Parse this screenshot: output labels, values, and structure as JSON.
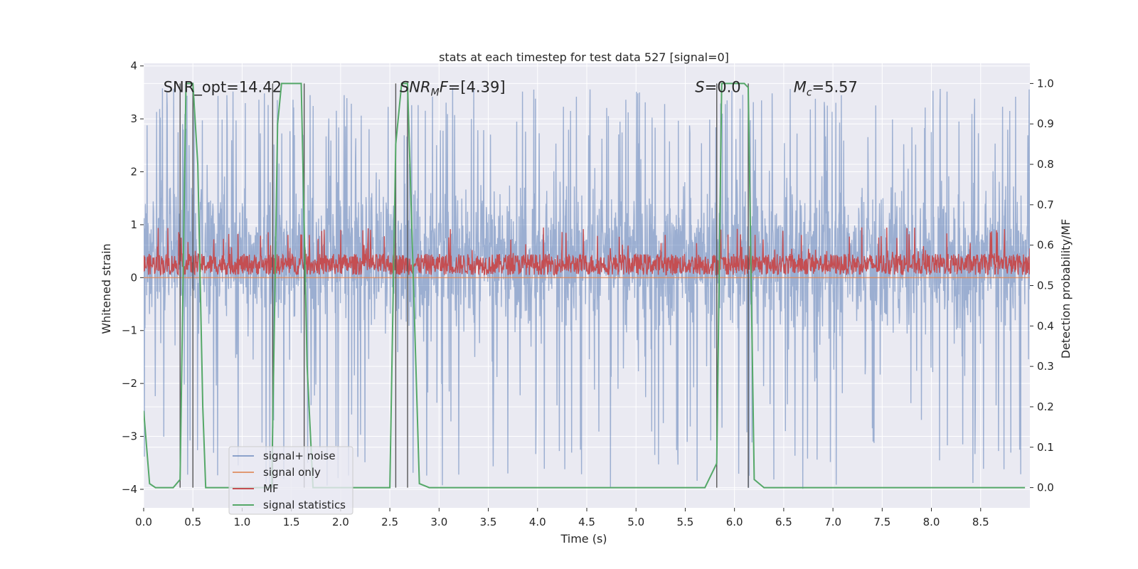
{
  "chart_data": {
    "type": "line",
    "title": "stats at each timestep for test data 527 [signal=0]",
    "xlabel": "Time (s)",
    "ylabel": "Whitened strain",
    "ylabel_right": "Detection probability/MF",
    "xlim": [
      0.0,
      9.0
    ],
    "ylim": [
      -4.35,
      4.05
    ],
    "ylim_right": [
      -0.05,
      1.05
    ],
    "xticks": [
      "0.0",
      "0.5",
      "1.0",
      "1.5",
      "2.0",
      "2.5",
      "3.0",
      "3.5",
      "4.0",
      "4.5",
      "5.0",
      "5.5",
      "6.0",
      "6.5",
      "7.0",
      "7.5",
      "8.0",
      "8.5"
    ],
    "yticks": [
      "−4",
      "−3",
      "−2",
      "−1",
      "0",
      "1",
      "2",
      "3",
      "4"
    ],
    "yticks_right": [
      "0.0",
      "0.1",
      "0.2",
      "0.3",
      "0.4",
      "0.5",
      "0.6",
      "0.7",
      "0.8",
      "0.9",
      "1.0"
    ],
    "grid": true,
    "legend_placement": "lower-left",
    "colors": {
      "background": "#eaeaf2",
      "grid": "#ffffff",
      "noise": "#4c72b0",
      "signal_only": "#dd8452",
      "mf": "#c44e52",
      "statistics": "#55a868",
      "markers": "#555555"
    },
    "annotations": [
      {
        "id": "snr_opt",
        "plain": "SNR_opt=14.42",
        "x": 0.2
      },
      {
        "id": "snr_mf",
        "sym": "SNR",
        "sub": "M",
        "tail": "F=[4.39]",
        "x": 2.6
      },
      {
        "id": "s",
        "sym": "S",
        "tail": "=0.0",
        "x": 5.6
      },
      {
        "id": "mc",
        "sym": "M",
        "sub": "c",
        "tail": "=5.57",
        "x": 6.6
      }
    ],
    "series": [
      {
        "name": "signal+ noise",
        "description_values": "dense noise around 0",
        "envelope_upper": 2.5,
        "envelope_lower": -1.2,
        "spike_max": 3.6,
        "spike_min": -4.0
      },
      {
        "name": "signal only",
        "constant": 0.0
      },
      {
        "name": "MF",
        "base_low": 0.05,
        "base_high": 0.45,
        "spike_max": 0.95
      },
      {
        "name": "signal statistics",
        "axis": "right",
        "x": [
          0.0,
          0.06,
          0.12,
          0.3,
          0.37,
          0.43,
          0.5,
          0.55,
          0.6,
          0.63,
          1.3,
          1.36,
          1.4,
          1.6,
          1.66,
          1.72,
          2.5,
          2.56,
          2.62,
          2.68,
          2.8,
          2.9,
          5.7,
          5.82,
          5.87,
          6.1,
          6.14,
          6.2,
          6.3,
          8.95
        ],
        "y": [
          0.19,
          0.01,
          0.0,
          0.0,
          0.02,
          1.0,
          1.0,
          0.8,
          0.2,
          0.0,
          0.0,
          0.9,
          1.0,
          1.0,
          0.3,
          0.0,
          0.0,
          0.85,
          1.0,
          1.0,
          0.01,
          0.0,
          0.0,
          0.06,
          1.0,
          1.0,
          0.99,
          0.02,
          0.0,
          0.0
        ]
      }
    ],
    "markers_x": [
      0.37,
      0.5,
      1.31,
      1.63,
      2.56,
      2.68,
      5.82,
      6.14
    ]
  }
}
